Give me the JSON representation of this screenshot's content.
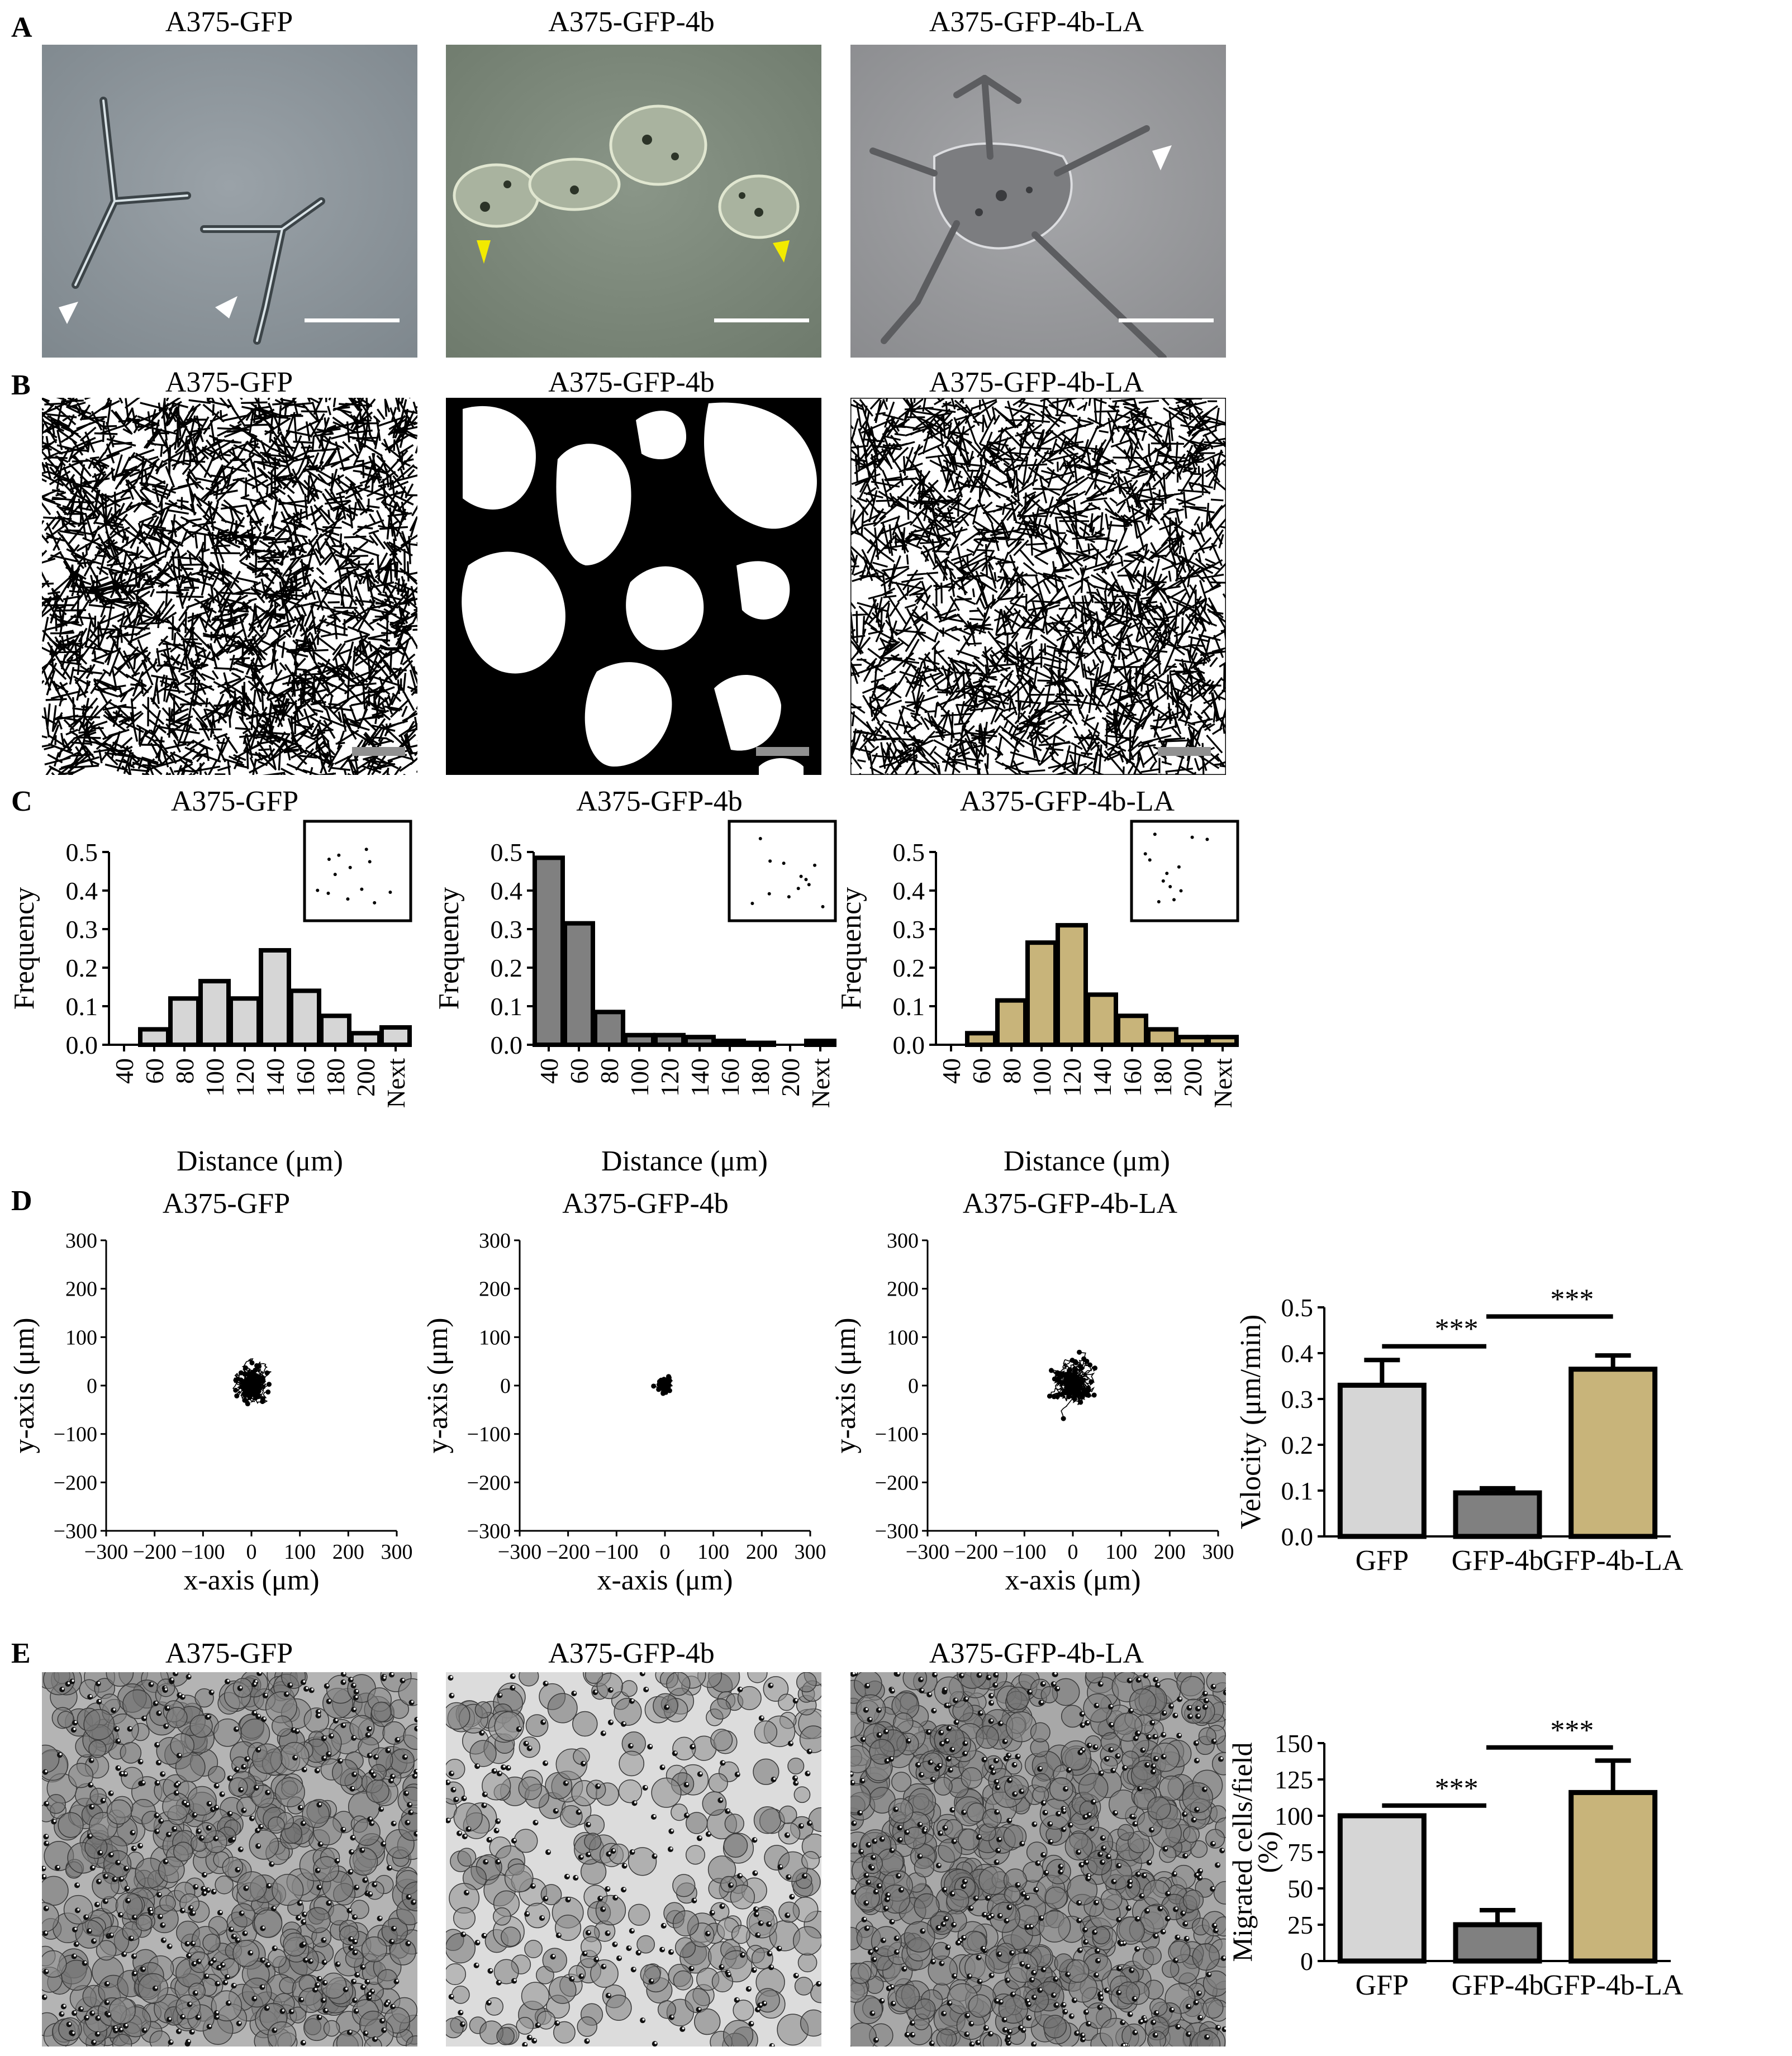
{
  "panels": {
    "A": {
      "letter": "A",
      "titles": [
        "A375-GFP",
        "A375-GFP-4b",
        "A375-GFP-4b-LA"
      ]
    },
    "B": {
      "letter": "B",
      "titles": [
        "A375-GFP",
        "A375-GFP-4b",
        "A375-GFP-4b-LA"
      ]
    },
    "C": {
      "letter": "C",
      "titles": [
        "A375-GFP",
        "A375-GFP-4b",
        "A375-GFP-4b-LA"
      ]
    },
    "D": {
      "letter": "D",
      "titles": [
        "A375-GFP",
        "A375-GFP-4b",
        "A375-GFP-4b-LA"
      ]
    },
    "E": {
      "letter": "E",
      "titles": [
        "A375-GFP",
        "A375-GFP-4b",
        "A375-GFP-4b-LA"
      ]
    }
  },
  "colors": {
    "gfp": "#d6d6d6",
    "gfp4b": "#808080",
    "gfp4bla": "#c8b47a",
    "phase_bg_1": "#8c949a",
    "phase_bg_2": "#7c8a7c",
    "phase_bg_3": "#9a9a9c",
    "yellow_arrow": "#f2ea00"
  },
  "chart_data": [
    {
      "type": "bar",
      "title": "A375-GFP",
      "xlabel": "Distance (μm)",
      "ylabel": "Frequency",
      "categories": [
        "40",
        "60",
        "80",
        "100",
        "120",
        "140",
        "160",
        "180",
        "200",
        "Next"
      ],
      "values": [
        0.0,
        0.04,
        0.12,
        0.165,
        0.12,
        0.245,
        0.14,
        0.075,
        0.03,
        0.045
      ],
      "ylim": [
        0,
        0.5
      ],
      "yticks": [
        "0.0",
        "0.1",
        "0.2",
        "0.3",
        "0.4",
        "0.5"
      ],
      "color": "#d6d6d6"
    },
    {
      "type": "bar",
      "title": "A375-GFP-4b",
      "xlabel": "Distance (μm)",
      "ylabel": "Frequency",
      "categories": [
        "40",
        "60",
        "80",
        "100",
        "120",
        "140",
        "160",
        "180",
        "200",
        "Next"
      ],
      "values": [
        0.485,
        0.315,
        0.085,
        0.025,
        0.025,
        0.02,
        0.01,
        0.005,
        0.0,
        0.01
      ],
      "ylim": [
        0,
        0.5
      ],
      "yticks": [
        "0.0",
        "0.1",
        "0.2",
        "0.3",
        "0.4",
        "0.5"
      ],
      "color": "#808080"
    },
    {
      "type": "bar",
      "title": "A375-GFP-4b-LA",
      "xlabel": "Distance (μm)",
      "ylabel": "Frequency",
      "categories": [
        "40",
        "60",
        "80",
        "100",
        "120",
        "140",
        "160",
        "180",
        "200",
        "Next"
      ],
      "values": [
        0.0,
        0.03,
        0.115,
        0.265,
        0.31,
        0.13,
        0.075,
        0.04,
        0.02,
        0.02
      ],
      "ylim": [
        0,
        0.5
      ],
      "yticks": [
        "0.0",
        "0.1",
        "0.2",
        "0.3",
        "0.4",
        "0.5"
      ],
      "color": "#c8b47a"
    },
    {
      "type": "scatter",
      "title": "A375-GFP",
      "xlabel": "x-axis (μm)",
      "ylabel": "y-axis (μm)",
      "xlim": [
        -300,
        300
      ],
      "ylim": [
        -300,
        300
      ],
      "ticks": [
        "−300",
        "−200",
        "−100",
        "0",
        "100",
        "200",
        "300"
      ],
      "spread": 90
    },
    {
      "type": "scatter",
      "title": "A375-GFP-4b",
      "xlabel": "x-axis (μm)",
      "ylabel": "y-axis (μm)",
      "xlim": [
        -300,
        300
      ],
      "ylim": [
        -300,
        300
      ],
      "ticks": [
        "−300",
        "−200",
        "−100",
        "0",
        "100",
        "200",
        "300"
      ],
      "spread": 35
    },
    {
      "type": "scatter",
      "title": "A375-GFP-4b-LA",
      "xlabel": "x-axis (μm)",
      "ylabel": "y-axis (μm)",
      "xlim": [
        -300,
        300
      ],
      "ylim": [
        -300,
        300
      ],
      "ticks": [
        "−300",
        "−200",
        "−100",
        "0",
        "100",
        "200",
        "300"
      ],
      "spread": 110
    },
    {
      "type": "bar",
      "title": "",
      "xlabel": "",
      "ylabel": "Velocity (μm/min)",
      "categories": [
        "GFP",
        "GFP-4b",
        "GFP-4b-LA"
      ],
      "values": [
        0.33,
        0.095,
        0.365
      ],
      "errors": [
        0.055,
        0.01,
        0.03
      ],
      "ylim": [
        0,
        0.5
      ],
      "yticks": [
        "0.0",
        "0.1",
        "0.2",
        "0.3",
        "0.4",
        "0.5"
      ],
      "significance": [
        {
          "from": 0,
          "to": 1,
          "label": "***"
        },
        {
          "from": 1,
          "to": 2,
          "label": "***"
        }
      ]
    },
    {
      "type": "bar",
      "title": "",
      "xlabel": "",
      "ylabel": "Migrated cells/field (%)",
      "ylabel_lines": [
        "Migrated cells/field",
        "(%)"
      ],
      "categories": [
        "GFP",
        "GFP-4b",
        "GFP-4b-LA"
      ],
      "values": [
        100,
        25,
        116
      ],
      "errors": [
        0,
        10,
        22
      ],
      "ylim": [
        0,
        150
      ],
      "yticks": [
        "0",
        "25",
        "50",
        "75",
        "100",
        "125",
        "150"
      ],
      "significance": [
        {
          "from": 0,
          "to": 1,
          "label": "***"
        },
        {
          "from": 1,
          "to": 2,
          "label": "***"
        }
      ]
    }
  ]
}
